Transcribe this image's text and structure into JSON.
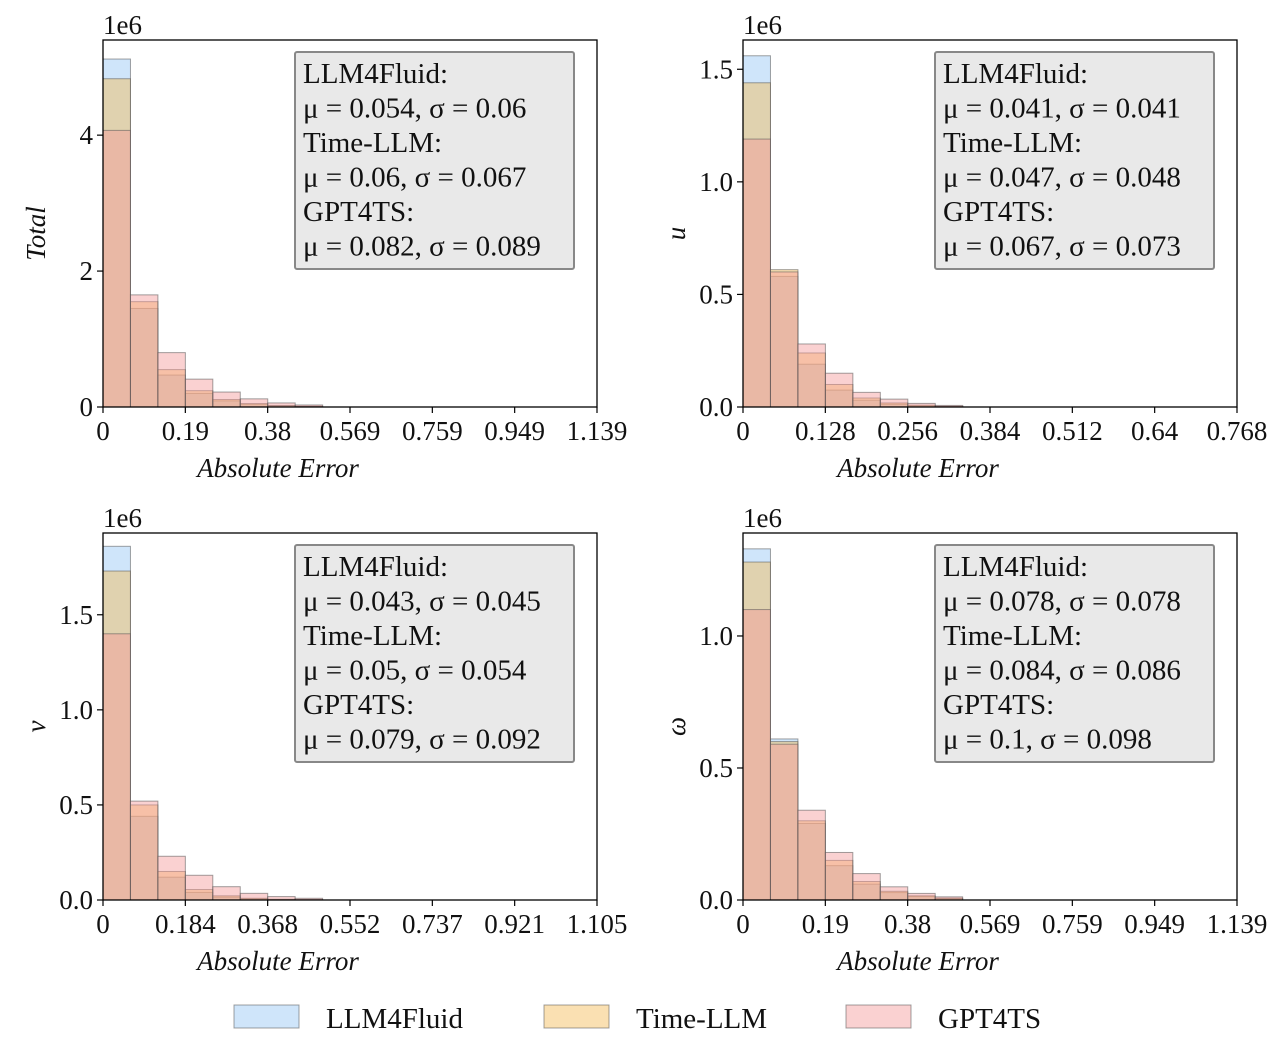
{
  "figure": {
    "legend": [
      {
        "label": "LLM4Fluid",
        "color": "#8cc0f2"
      },
      {
        "label": "Time-LLM",
        "color": "#f5ba55"
      },
      {
        "label": "GPT4TS",
        "color": "#f59a9a"
      }
    ],
    "colors": {
      "LLM4Fluid": "#8cc0f2",
      "Time-LLM": "#f5ba55",
      "GPT4TS": "#f59a9a",
      "box_bg": "#e9e9e9",
      "box_border": "#888888"
    }
  },
  "chart_data": [
    {
      "type": "bar",
      "title": "",
      "xlabel": "Absolute Error",
      "ylabel": "Total",
      "multiplier": "1e6",
      "xlim": [
        0,
        1.139
      ],
      "ylim": [
        0,
        5.4
      ],
      "xticks": [
        "0",
        "0.19",
        "0.38",
        "0.569",
        "0.759",
        "0.949",
        "1.139"
      ],
      "yticks": [
        {
          "v": 0,
          "label": "0"
        },
        {
          "v": 2,
          "label": "2"
        },
        {
          "v": 4,
          "label": "4"
        }
      ],
      "bin_width": 0.0633,
      "series": [
        {
          "name": "LLM4Fluid",
          "values": [
            5.12,
            1.45,
            0.47,
            0.2,
            0.09,
            0.04,
            0.02,
            0.01
          ]
        },
        {
          "name": "Time-LLM",
          "values": [
            4.83,
            1.55,
            0.55,
            0.24,
            0.11,
            0.05,
            0.02,
            0.01
          ]
        },
        {
          "name": "GPT4TS",
          "values": [
            4.07,
            1.65,
            0.8,
            0.41,
            0.22,
            0.12,
            0.06,
            0.03
          ]
        }
      ],
      "stats": [
        {
          "name": "LLM4Fluid:",
          "text": "μ = 0.054, σ = 0.06"
        },
        {
          "name": "Time-LLM:",
          "text": "μ = 0.06, σ = 0.067"
        },
        {
          "name": "GPT4TS:",
          "text": "μ = 0.082, σ = 0.089"
        }
      ]
    },
    {
      "type": "bar",
      "title": "",
      "xlabel": "Absolute Error",
      "ylabel": "u",
      "multiplier": "1e6",
      "xlim": [
        0,
        0.768
      ],
      "ylim": [
        0,
        1.63
      ],
      "xticks": [
        "0",
        "0.128",
        "0.256",
        "0.384",
        "0.512",
        "0.64",
        "0.768"
      ],
      "yticks": [
        {
          "v": 0,
          "label": "0.0"
        },
        {
          "v": 0.5,
          "label": "0.5"
        },
        {
          "v": 1.0,
          "label": "1.0"
        },
        {
          "v": 1.5,
          "label": "1.5"
        }
      ],
      "bin_width": 0.0427,
      "series": [
        {
          "name": "LLM4Fluid",
          "values": [
            1.56,
            0.58,
            0.19,
            0.075,
            0.03,
            0.012,
            0.005,
            0.002
          ]
        },
        {
          "name": "Time-LLM",
          "values": [
            1.44,
            0.61,
            0.24,
            0.1,
            0.04,
            0.018,
            0.008,
            0.003
          ]
        },
        {
          "name": "GPT4TS",
          "values": [
            1.19,
            0.6,
            0.28,
            0.15,
            0.065,
            0.035,
            0.016,
            0.007
          ]
        }
      ],
      "stats": [
        {
          "name": "LLM4Fluid:",
          "text": "μ = 0.041, σ = 0.041"
        },
        {
          "name": "Time-LLM:",
          "text": "μ = 0.047, σ = 0.048"
        },
        {
          "name": "GPT4TS:",
          "text": "μ = 0.067, σ = 0.073"
        }
      ]
    },
    {
      "type": "bar",
      "title": "",
      "xlabel": "Absolute Error",
      "ylabel": "v",
      "multiplier": "1e6",
      "xlim": [
        0,
        1.105
      ],
      "ylim": [
        0,
        1.93
      ],
      "xticks": [
        "0",
        "0.184",
        "0.368",
        "0.552",
        "0.737",
        "0.921",
        "1.105"
      ],
      "yticks": [
        {
          "v": 0,
          "label": "0.0"
        },
        {
          "v": 0.5,
          "label": "0.5"
        },
        {
          "v": 1.0,
          "label": "1.0"
        },
        {
          "v": 1.5,
          "label": "1.5"
        }
      ],
      "bin_width": 0.0614,
      "series": [
        {
          "name": "LLM4Fluid",
          "values": [
            1.86,
            0.44,
            0.12,
            0.04,
            0.015,
            0.006,
            0.002,
            0.001
          ]
        },
        {
          "name": "Time-LLM",
          "values": [
            1.73,
            0.5,
            0.15,
            0.055,
            0.022,
            0.009,
            0.004,
            0.002
          ]
        },
        {
          "name": "GPT4TS",
          "values": [
            1.4,
            0.52,
            0.23,
            0.13,
            0.07,
            0.035,
            0.018,
            0.009
          ]
        }
      ],
      "stats": [
        {
          "name": "LLM4Fluid:",
          "text": "μ = 0.043, σ = 0.045"
        },
        {
          "name": "Time-LLM:",
          "text": "μ = 0.05, σ = 0.054"
        },
        {
          "name": "GPT4TS:",
          "text": "μ = 0.079, σ = 0.092"
        }
      ]
    },
    {
      "type": "bar",
      "title": "",
      "xlabel": "Absolute Error",
      "ylabel": "ω",
      "multiplier": "1e6",
      "xlim": [
        0,
        1.139
      ],
      "ylim": [
        0,
        1.39
      ],
      "xticks": [
        "0",
        "0.19",
        "0.38",
        "0.569",
        "0.759",
        "0.949",
        "1.139"
      ],
      "yticks": [
        {
          "v": 0,
          "label": "0.0"
        },
        {
          "v": 0.5,
          "label": "0.5"
        },
        {
          "v": 1.0,
          "label": "1.0"
        }
      ],
      "bin_width": 0.0633,
      "series": [
        {
          "name": "LLM4Fluid",
          "values": [
            1.33,
            0.61,
            0.29,
            0.13,
            0.06,
            0.028,
            0.013,
            0.006
          ]
        },
        {
          "name": "Time-LLM",
          "values": [
            1.28,
            0.6,
            0.3,
            0.15,
            0.07,
            0.033,
            0.016,
            0.007
          ]
        },
        {
          "name": "GPT4TS",
          "values": [
            1.1,
            0.59,
            0.34,
            0.18,
            0.1,
            0.05,
            0.025,
            0.012
          ]
        }
      ],
      "stats": [
        {
          "name": "LLM4Fluid:",
          "text": "μ = 0.078, σ = 0.078"
        },
        {
          "name": "Time-LLM:",
          "text": "μ = 0.084, σ = 0.086"
        },
        {
          "name": "GPT4TS:",
          "text": "μ = 0.1, σ = 0.098"
        }
      ]
    }
  ]
}
